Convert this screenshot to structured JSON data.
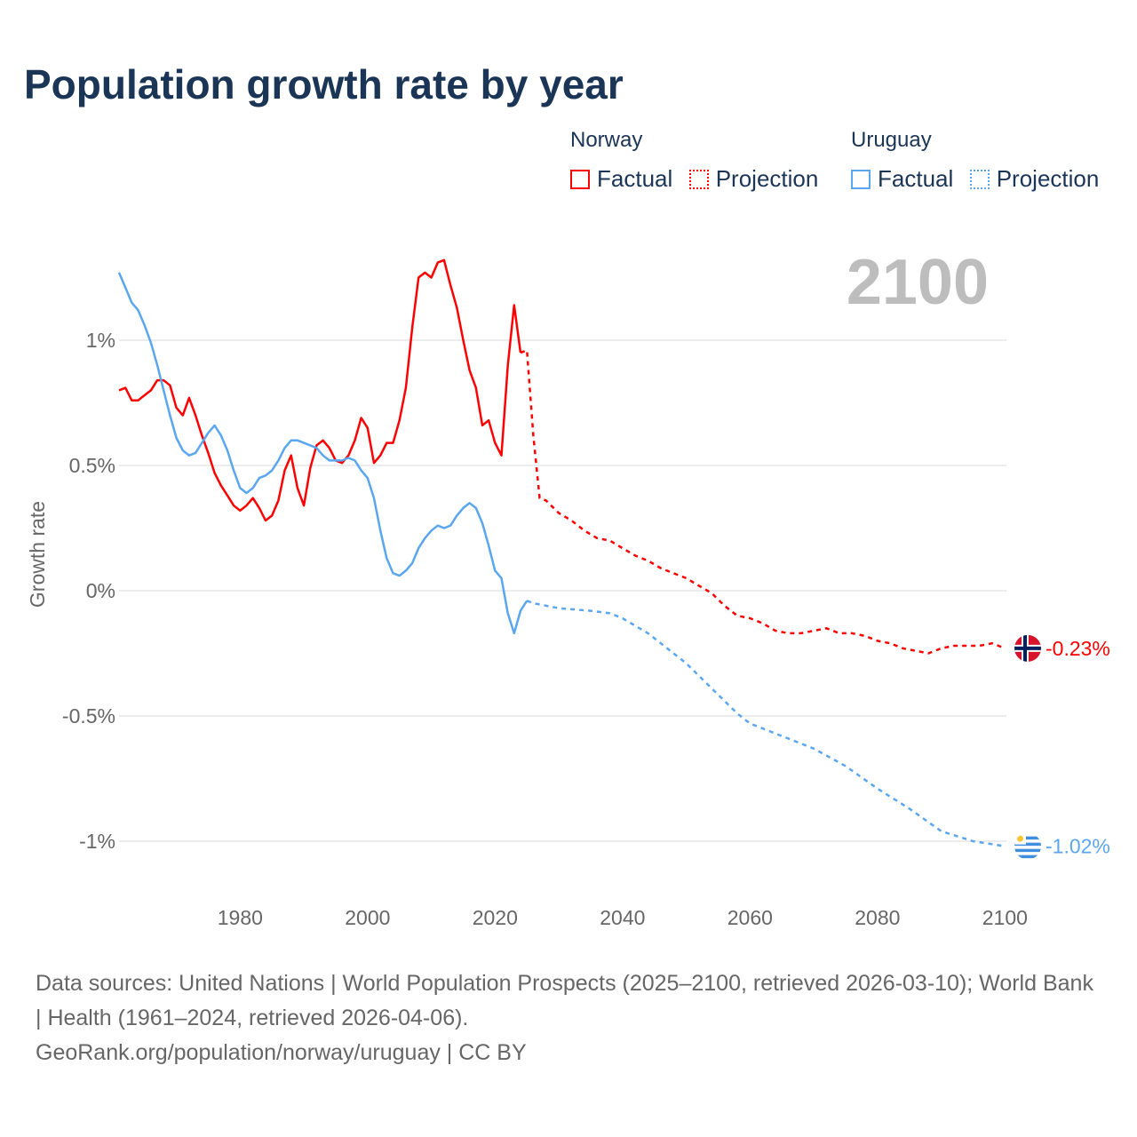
{
  "chart_data": {
    "type": "line",
    "title": "Population growth rate by year",
    "ylabel": "Growth rate",
    "xlabel": "",
    "xlim": [
      1961,
      2100
    ],
    "ylim": [
      -1.1,
      1.4
    ],
    "x_ticks": [
      1980,
      2000,
      2020,
      2040,
      2060,
      2080,
      2100
    ],
    "x_tick_labels": [
      "1980",
      "2000",
      "2020",
      "2040",
      "2060",
      "2080",
      "2100"
    ],
    "y_ticks": [
      1,
      0.5,
      0,
      -0.5,
      -1
    ],
    "y_tick_labels": [
      "1%",
      "0.5%",
      "0%",
      "-0.5%",
      "-1%"
    ],
    "grid": true,
    "year_label": "2100",
    "legend_placement": "top-right",
    "series": [
      {
        "name": "Norway",
        "color": "#ff0000",
        "factual_label": "Factual",
        "projection_label": "Projection",
        "end_label": "-0.23%",
        "factual": {
          "start_year": 1961,
          "values": [
            0.8,
            0.81,
            0.76,
            0.76,
            0.78,
            0.8,
            0.84,
            0.84,
            0.82,
            0.73,
            0.7,
            0.77,
            0.7,
            0.62,
            0.55,
            0.47,
            0.42,
            0.38,
            0.34,
            0.32,
            0.34,
            0.37,
            0.33,
            0.28,
            0.3,
            0.36,
            0.48,
            0.54,
            0.41,
            0.34,
            0.49,
            0.58,
            0.6,
            0.57,
            0.52,
            0.51,
            0.54,
            0.6,
            0.69,
            0.65,
            0.51,
            0.54,
            0.59,
            0.59,
            0.68,
            0.81,
            1.05,
            1.25,
            1.27,
            1.25,
            1.31,
            1.32,
            1.22,
            1.13,
            1.0,
            0.88,
            0.81,
            0.66,
            0.68,
            0.59,
            0.54,
            0.9,
            1.14,
            0.95
          ]
        },
        "projection": {
          "years": [
            2024,
            2025,
            2026,
            2027,
            2028,
            2030,
            2032,
            2034,
            2036,
            2038,
            2040,
            2042,
            2044,
            2046,
            2048,
            2050,
            2052,
            2054,
            2056,
            2058,
            2060,
            2062,
            2064,
            2066,
            2068,
            2070,
            2072,
            2074,
            2076,
            2078,
            2080,
            2082,
            2084,
            2086,
            2088,
            2090,
            2092,
            2094,
            2096,
            2098,
            2100
          ],
          "values": [
            0.95,
            0.96,
            0.62,
            0.37,
            0.36,
            0.31,
            0.28,
            0.24,
            0.21,
            0.2,
            0.17,
            0.14,
            0.12,
            0.09,
            0.07,
            0.05,
            0.02,
            -0.01,
            -0.06,
            -0.1,
            -0.11,
            -0.13,
            -0.16,
            -0.17,
            -0.17,
            -0.16,
            -0.15,
            -0.17,
            -0.17,
            -0.18,
            -0.2,
            -0.21,
            -0.23,
            -0.24,
            -0.25,
            -0.23,
            -0.22,
            -0.22,
            -0.22,
            -0.21,
            -0.23
          ]
        }
      },
      {
        "name": "Uruguay",
        "color": "#5ba6f0",
        "factual_label": "Factual",
        "projection_label": "Projection",
        "end_label": "-1.02%",
        "factual": {
          "start_year": 1961,
          "values": [
            1.27,
            1.21,
            1.15,
            1.12,
            1.06,
            0.99,
            0.9,
            0.8,
            0.7,
            0.61,
            0.56,
            0.54,
            0.55,
            0.59,
            0.63,
            0.66,
            0.62,
            0.56,
            0.48,
            0.41,
            0.39,
            0.41,
            0.45,
            0.46,
            0.48,
            0.52,
            0.57,
            0.6,
            0.6,
            0.59,
            0.58,
            0.57,
            0.54,
            0.52,
            0.52,
            0.52,
            0.53,
            0.52,
            0.48,
            0.45,
            0.37,
            0.24,
            0.13,
            0.07,
            0.06,
            0.08,
            0.11,
            0.17,
            0.21,
            0.24,
            0.26,
            0.25,
            0.26,
            0.3,
            0.33,
            0.35,
            0.33,
            0.27,
            0.18,
            0.08,
            0.05,
            -0.09,
            -0.17,
            -0.08,
            -0.04
          ]
        },
        "projection": {
          "years": [
            2025,
            2026,
            2028,
            2030,
            2035,
            2038,
            2040,
            2042,
            2044,
            2046,
            2048,
            2050,
            2052,
            2054,
            2056,
            2058,
            2060,
            2065,
            2070,
            2075,
            2080,
            2085,
            2090,
            2095,
            2100
          ],
          "values": [
            -0.04,
            -0.05,
            -0.06,
            -0.07,
            -0.08,
            -0.09,
            -0.11,
            -0.14,
            -0.17,
            -0.21,
            -0.25,
            -0.29,
            -0.34,
            -0.39,
            -0.44,
            -0.49,
            -0.53,
            -0.58,
            -0.63,
            -0.7,
            -0.79,
            -0.87,
            -0.96,
            -1.0,
            -1.02
          ]
        }
      }
    ]
  },
  "footer": {
    "sources": "Data sources: United Nations | World Population Prospects (2025–2100, retrieved 2026-03-10); World Bank | Health (1961–2024, retrieved 2026-04-06).",
    "credit": "GeoRank.org/population/norway/uruguay | CC BY"
  }
}
